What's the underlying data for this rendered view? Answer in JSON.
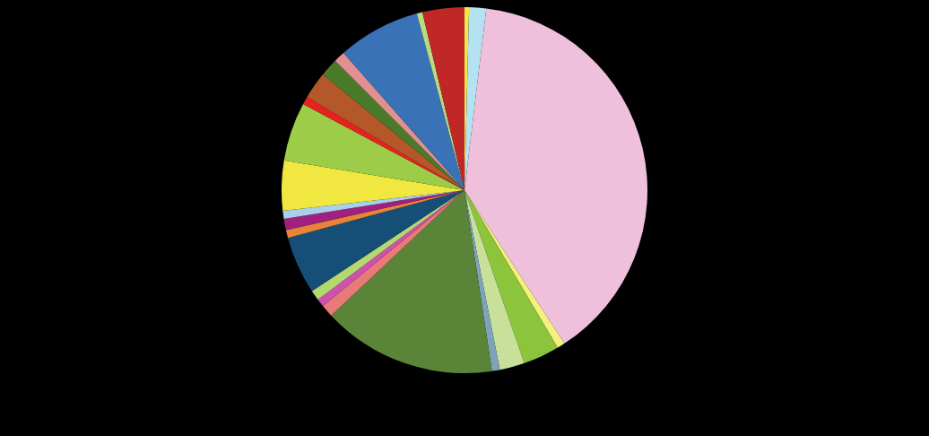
{
  "chart_data": {
    "type": "pie",
    "categories": [
      null,
      null,
      null,
      null,
      null,
      null,
      null,
      null,
      null,
      null,
      null,
      null,
      null,
      null,
      null,
      null,
      null,
      null,
      null,
      null,
      null,
      null,
      null,
      null
    ],
    "values": [
      0.4,
      1.5,
      38.9,
      0.7,
      3.2,
      2.2,
      0.7,
      15.4,
      1.1,
      0.7,
      0.9,
      5.1,
      0.7,
      1.0,
      0.7,
      4.4,
      5.2,
      0.7,
      2.4,
      1.6,
      1.0,
      7.3,
      0.5,
      3.7
    ],
    "colors": [
      "#f2e84a",
      "#b5e2f0",
      "#efc0dc",
      "#f5ef80",
      "#8cc43c",
      "#c8e09a",
      "#7ea4bc",
      "#5a8538",
      "#e87a78",
      "#d050b0",
      "#b4d870",
      "#154f78",
      "#e8843a",
      "#a02080",
      "#a8d0ec",
      "#f0e840",
      "#9ccc48",
      "#e82020",
      "#b4582a",
      "#4a7a2a",
      "#e09090",
      "#3a72b8",
      "#b8dc80",
      "#c02828"
    ]
  }
}
